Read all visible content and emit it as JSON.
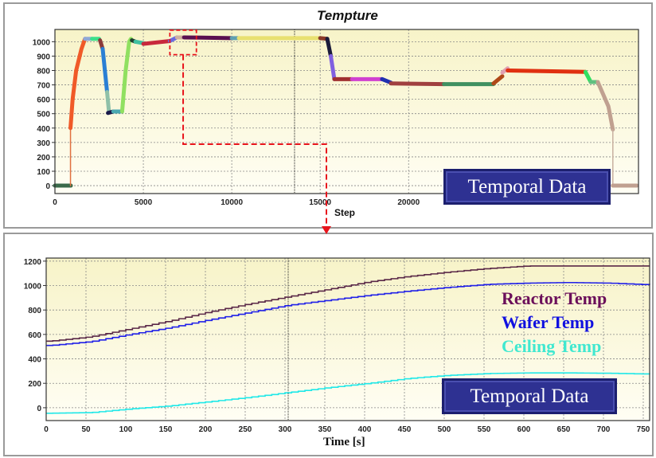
{
  "chart_data": [
    {
      "type": "line",
      "title": "Tempture",
      "xlabel": "Step",
      "ylabel": "",
      "xlim": [
        0,
        33000
      ],
      "ylim": [
        -55,
        1085
      ],
      "xticks": [
        "0",
        "5000",
        "10000",
        "15000",
        "20000"
      ],
      "xtick_values": [
        0,
        5000,
        10000,
        15000,
        20000
      ],
      "yticks": [
        "0",
        "100",
        "200",
        "300",
        "400",
        "500",
        "600",
        "700",
        "800",
        "900",
        "1000"
      ],
      "ytick_values": [
        0,
        100,
        200,
        300,
        400,
        500,
        600,
        700,
        800,
        900,
        1000
      ],
      "grid": true,
      "cursor_line_x": 13550,
      "annotation": "Temporal Data",
      "highlight_region": {
        "x": [
          6500,
          8000
        ],
        "y": [
          910,
          1080
        ]
      },
      "segments": [
        {
          "color": "#3a6a4a",
          "points": [
            [
              0,
              0
            ],
            [
              900,
              0
            ]
          ]
        },
        {
          "color": "#e07040",
          "points": [
            [
              880,
              0
            ],
            [
              880,
              400
            ]
          ]
        },
        {
          "color": "#f05a28",
          "points": [
            [
              880,
              400
            ],
            [
              1000,
              600
            ],
            [
              1200,
              800
            ],
            [
              1500,
              950
            ],
            [
              1700,
              1020
            ]
          ]
        },
        {
          "color": "#8fa8d8",
          "points": [
            [
              1700,
              1020
            ],
            [
              2100,
              1020
            ]
          ]
        },
        {
          "color": "#3ce08a",
          "points": [
            [
              2100,
              1020
            ],
            [
              2500,
              1020
            ]
          ]
        },
        {
          "color": "#8b3a3a",
          "points": [
            [
              2550,
              1010
            ],
            [
              2700,
              950
            ]
          ]
        },
        {
          "color": "#2a7fd4",
          "points": [
            [
              2700,
              950
            ],
            [
              2950,
              650
            ]
          ]
        },
        {
          "color": "#8fc0a8",
          "points": [
            [
              2950,
              650
            ],
            [
              3050,
              520
            ]
          ]
        },
        {
          "color": "#1a1a4a",
          "points": [
            [
              3000,
              505
            ],
            [
              3300,
              515
            ]
          ]
        },
        {
          "color": "#4aa8b0",
          "points": [
            [
              3300,
              515
            ],
            [
              3800,
              515
            ]
          ]
        },
        {
          "color": "#90e060",
          "points": [
            [
              3800,
              515
            ],
            [
              4000,
              800
            ],
            [
              4200,
              1000
            ],
            [
              4300,
              1020
            ]
          ]
        },
        {
          "color": "#204030",
          "points": [
            [
              4350,
              1010
            ],
            [
              4550,
              1000
            ]
          ]
        },
        {
          "color": "#40c0a0",
          "points": [
            [
              4550,
              1000
            ],
            [
              5000,
              990
            ]
          ]
        },
        {
          "color": "#c8283c",
          "points": [
            [
              5000,
              985
            ],
            [
              6500,
              1005
            ]
          ]
        },
        {
          "color": "#6a6ae0",
          "points": [
            [
              6500,
              1005
            ],
            [
              6900,
              1030
            ]
          ]
        },
        {
          "color": "#d0b0a0",
          "points": [
            [
              6900,
              1030
            ],
            [
              7300,
              1030
            ]
          ]
        },
        {
          "color": "#5a1050",
          "points": [
            [
              7300,
              1030
            ],
            [
              10000,
              1025
            ]
          ]
        },
        {
          "color": "#60a0b0",
          "points": [
            [
              10000,
              1025
            ],
            [
              10400,
              1025
            ]
          ]
        },
        {
          "color": "#e8e070",
          "points": [
            [
              10400,
              1025
            ],
            [
              15000,
              1025
            ]
          ]
        },
        {
          "color": "#8b3a2a",
          "points": [
            [
              15000,
              1025
            ],
            [
              15400,
              1020
            ]
          ]
        },
        {
          "color": "#1a1a3a",
          "points": [
            [
              15400,
              1020
            ],
            [
              15600,
              900
            ]
          ]
        },
        {
          "color": "#8060e0",
          "points": [
            [
              15600,
              900
            ],
            [
              15800,
              740
            ]
          ]
        },
        {
          "color": "#a03030",
          "points": [
            [
              15800,
              740
            ],
            [
              16800,
              740
            ]
          ]
        },
        {
          "color": "#d040d0",
          "points": [
            [
              16800,
              740
            ],
            [
              18500,
              740
            ]
          ]
        },
        {
          "color": "#2030b0",
          "points": [
            [
              18500,
              740
            ],
            [
              19000,
              715
            ]
          ]
        },
        {
          "color": "#a04040",
          "points": [
            [
              19000,
              710
            ],
            [
              22000,
              705
            ]
          ]
        },
        {
          "color": "#409060",
          "points": [
            [
              22000,
              705
            ],
            [
              24800,
              705
            ]
          ]
        },
        {
          "color": "#b04818",
          "points": [
            [
              24800,
              710
            ],
            [
              25300,
              760
            ]
          ]
        },
        {
          "color": "#e0a0b0",
          "points": [
            [
              25300,
              785
            ],
            [
              25600,
              815
            ]
          ]
        },
        {
          "color": "#e03010",
          "points": [
            [
              25600,
              800
            ],
            [
              30000,
              790
            ]
          ]
        },
        {
          "color": "#30e060",
          "points": [
            [
              30000,
              790
            ],
            [
              30300,
              720
            ]
          ]
        },
        {
          "color": "#60c080",
          "points": [
            [
              30300,
              720
            ],
            [
              30700,
              720
            ]
          ]
        },
        {
          "color": "#c0a090",
          "points": [
            [
              30700,
              720
            ],
            [
              31300,
              550
            ],
            [
              31550,
              390
            ]
          ]
        },
        {
          "color": "#c8b0a0",
          "points": [
            [
              31550,
              390
            ],
            [
              31550,
              0
            ]
          ]
        },
        {
          "color": "#c0a090",
          "points": [
            [
              31550,
              0
            ],
            [
              32900,
              0
            ]
          ]
        }
      ]
    },
    {
      "type": "line",
      "title": "",
      "xlabel": "Time [s]",
      "ylabel": "",
      "xlim": [
        0,
        758
      ],
      "ylim": [
        -105,
        1225
      ],
      "xticks": [
        "0",
        "50",
        "100",
        "150",
        "200",
        "250",
        "300",
        "350",
        "400",
        "450",
        "500",
        "550",
        "600",
        "650",
        "700",
        "750"
      ],
      "xtick_values": [
        0,
        50,
        100,
        150,
        200,
        250,
        300,
        350,
        400,
        450,
        500,
        550,
        600,
        650,
        700,
        750
      ],
      "yticks": [
        "0",
        "200",
        "400",
        "600",
        "800",
        "1000",
        "1200"
      ],
      "ytick_values": [
        0,
        200,
        400,
        600,
        800,
        1000,
        1200
      ],
      "grid": true,
      "cursor_line_x": 304,
      "annotation": "Temporal Data",
      "legend_position": "right",
      "x": [
        0,
        50,
        100,
        150,
        200,
        250,
        300,
        350,
        400,
        450,
        500,
        550,
        600,
        650,
        700,
        758
      ],
      "series": [
        {
          "name": "Reactor Temp",
          "color": "#6b0f5a",
          "line_color": "#5a2848",
          "values": [
            545,
            580,
            645,
            710,
            785,
            850,
            910,
            970,
            1030,
            1075,
            1110,
            1140,
            1160,
            1160,
            1160,
            1160
          ]
        },
        {
          "name": "Wafer Temp",
          "color": "#1010e0",
          "line_color": "#2020e8",
          "values": [
            510,
            540,
            600,
            655,
            720,
            780,
            840,
            880,
            920,
            955,
            985,
            1010,
            1020,
            1025,
            1020,
            1005
          ]
        },
        {
          "name": "Ceiling Temp",
          "color": "#40e8d0",
          "line_color": "#20e8e8",
          "values": [
            -45,
            -40,
            -10,
            15,
            50,
            85,
            125,
            165,
            200,
            240,
            265,
            280,
            285,
            285,
            282,
            275
          ]
        }
      ]
    }
  ]
}
